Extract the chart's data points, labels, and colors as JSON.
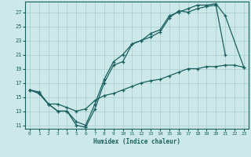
{
  "xlabel": "Humidex (Indice chaleur)",
  "ylabel": "",
  "background_color": "#cce8e8",
  "grid_color": "#a8cccc",
  "line_color": "#1a6060",
  "xlim": [
    -0.5,
    23.5
  ],
  "ylim": [
    10.5,
    28.5
  ],
  "xticks": [
    0,
    1,
    2,
    3,
    4,
    5,
    6,
    7,
    8,
    9,
    10,
    11,
    12,
    13,
    14,
    15,
    16,
    17,
    18,
    19,
    20,
    21,
    22,
    23
  ],
  "yticks": [
    11,
    13,
    15,
    17,
    19,
    21,
    23,
    25,
    27
  ],
  "line1_x": [
    0,
    1,
    2,
    3,
    4,
    5,
    6,
    7,
    8,
    9,
    10,
    11,
    12,
    13,
    14,
    15,
    16,
    17,
    18,
    19,
    20,
    21
  ],
  "line1_y": [
    16,
    15.5,
    14,
    13,
    13,
    11,
    10.7,
    13.3,
    17,
    19.5,
    20,
    22.5,
    23,
    23.5,
    24.2,
    26.2,
    27.2,
    27.0,
    27.5,
    27.8,
    28.0,
    21.0
  ],
  "line2_x": [
    0,
    1,
    2,
    3,
    4,
    5,
    6,
    7,
    8,
    9,
    10,
    11,
    12,
    13,
    14,
    15,
    16,
    17,
    18,
    19,
    20,
    21,
    23
  ],
  "line2_y": [
    16,
    15.5,
    14,
    13,
    13,
    11.5,
    11,
    14.0,
    17.5,
    20,
    21,
    22.5,
    23,
    24,
    24.5,
    26.5,
    27.0,
    27.5,
    28.0,
    28.0,
    28.2,
    26.5,
    19.2
  ],
  "line3_x": [
    0,
    1,
    2,
    3,
    4,
    5,
    6,
    7,
    8,
    9,
    10,
    11,
    12,
    13,
    14,
    15,
    16,
    17,
    18,
    19,
    20,
    21,
    22,
    23
  ],
  "line3_y": [
    16,
    15.7,
    14,
    14,
    13.5,
    13,
    13.3,
    14.5,
    15.2,
    15.5,
    16,
    16.5,
    17,
    17.3,
    17.5,
    18,
    18.5,
    19,
    19.0,
    19.3,
    19.3,
    19.5,
    19.5,
    19.2
  ]
}
